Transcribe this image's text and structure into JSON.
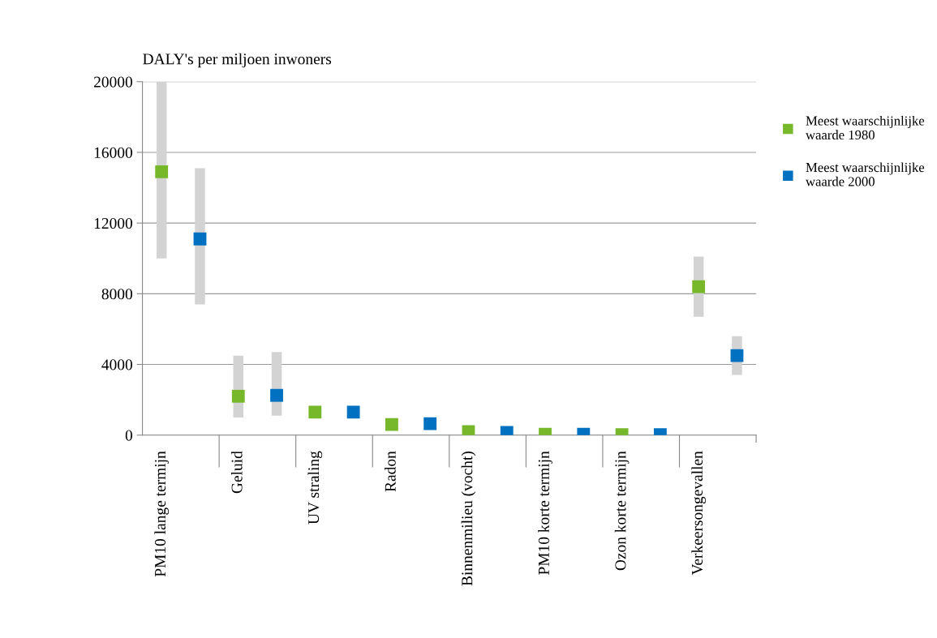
{
  "chart_data": {
    "type": "scatter",
    "ylabel": "DALY's per miljoen inwoners",
    "categories": [
      "PM10 lange termijn",
      null,
      "Geluid",
      null,
      "UV straling",
      null,
      "Radon",
      null,
      "Binnenmilieu (vocht)",
      null,
      "PM10 korte termijn",
      null,
      "Ozon korte termijn",
      null,
      "Verkeersongevallen",
      null
    ],
    "series": [
      {
        "name": "Meest waarschijnlijke waarde 1980",
        "color": "#77b82a",
        "values": [
          14900,
          null,
          2200,
          null,
          1300,
          null,
          600,
          null,
          200,
          null,
          50,
          null,
          30,
          null,
          8400,
          null
        ],
        "errors": [
          [
            10000,
            20000
          ],
          null,
          [
            1000,
            4500
          ],
          null,
          null,
          null,
          null,
          null,
          null,
          null,
          null,
          null,
          null,
          null,
          [
            6700,
            10100
          ],
          null
        ]
      },
      {
        "name": "Meest waarschijnlijke waarde 2000",
        "color": "#0070c0",
        "values": [
          null,
          11100,
          null,
          2250,
          null,
          1300,
          null,
          650,
          null,
          150,
          null,
          50,
          null,
          30,
          null,
          4500
        ],
        "errors": [
          null,
          [
            7400,
            15100
          ],
          null,
          [
            1100,
            4700
          ],
          null,
          null,
          null,
          null,
          null,
          null,
          null,
          null,
          null,
          null,
          null,
          [
            3400,
            5600
          ]
        ]
      }
    ],
    "ylim": [
      0,
      20000
    ],
    "yticks": [
      0,
      4000,
      8000,
      12000,
      16000,
      20000
    ],
    "grid": "y",
    "legend": "right",
    "marker": "square"
  }
}
